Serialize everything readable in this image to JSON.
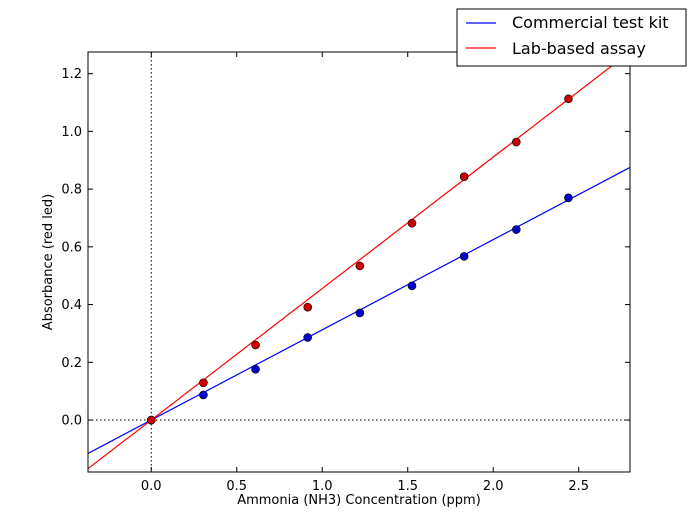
{
  "chart_data": {
    "type": "scatter",
    "xlabel": "Ammonia (NH3) Concentration (ppm)",
    "ylabel": "Absorbance (red led)",
    "xlim": [
      -0.37,
      2.8
    ],
    "ylim": [
      -0.18,
      1.275
    ],
    "xticks": [
      0.0,
      0.5,
      1.0,
      1.5,
      2.0,
      2.5
    ],
    "xtick_labels": [
      "0.0",
      "0.5",
      "1.0",
      "1.5",
      "2.0",
      "2.5"
    ],
    "yticks": [
      0.0,
      0.2,
      0.4,
      0.6,
      0.8,
      1.0,
      1.2
    ],
    "ytick_labels": [
      "0.0",
      "0.2",
      "0.4",
      "0.6",
      "0.8",
      "1.0",
      "1.2"
    ],
    "reference_lines": {
      "x": 0.0,
      "y": 0.0,
      "style": "dotted"
    },
    "legend_position": "top-right, outside",
    "series": [
      {
        "name": "Commercial test kit",
        "color": "#0000ff",
        "marker_color": "#0000cc",
        "points": {
          "x": [
            0.0,
            0.305,
            0.61,
            0.915,
            1.22,
            1.525,
            1.83,
            2.135,
            2.44
          ],
          "y": [
            0.0,
            0.087,
            0.176,
            0.286,
            0.371,
            0.465,
            0.567,
            0.66,
            0.77
          ]
        },
        "fit": {
          "slope": 0.3125,
          "intercept": 0.0
        }
      },
      {
        "name": "Lab-based assay",
        "color": "#ff0000",
        "marker_color": "#cc0000",
        "points": {
          "x": [
            0.0,
            0.305,
            0.61,
            0.915,
            1.22,
            1.525,
            1.83,
            2.135,
            2.44
          ],
          "y": [
            0.0,
            0.129,
            0.26,
            0.391,
            0.534,
            0.682,
            0.843,
            0.963,
            1.113
          ]
        },
        "fit": {
          "slope": 0.4555,
          "intercept": 0.0
        }
      }
    ]
  }
}
